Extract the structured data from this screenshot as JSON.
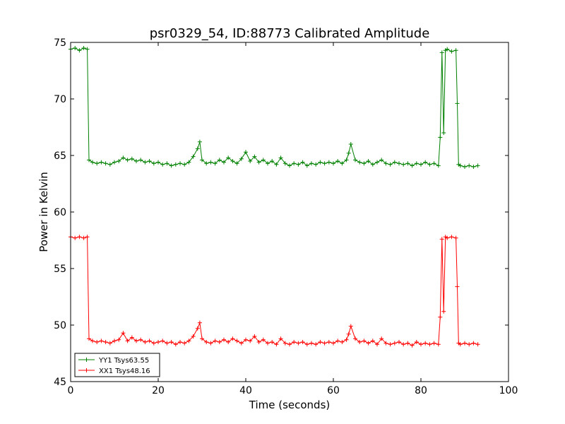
{
  "chart_data": {
    "type": "line",
    "title": "psr0329_54, ID:88773 Calibrated Amplitude",
    "xlabel": "Time (seconds)",
    "ylabel": "Power in Kelvin",
    "xlim": [
      0,
      100
    ],
    "ylim": [
      45,
      75
    ],
    "xticks": [
      0,
      20,
      40,
      60,
      80,
      100
    ],
    "yticks": [
      45,
      50,
      55,
      60,
      65,
      70,
      75
    ],
    "grid": false,
    "legend_position": "lower-left",
    "marker": "plus",
    "series": [
      {
        "name": "YY1 Tsys63.55",
        "color": "#008000",
        "points": [
          [
            0,
            74.4
          ],
          [
            1,
            74.5
          ],
          [
            2,
            74.3
          ],
          [
            3,
            74.5
          ],
          [
            3.8,
            74.4
          ],
          [
            4.2,
            64.6
          ],
          [
            5,
            64.4
          ],
          [
            6,
            64.3
          ],
          [
            7,
            64.4
          ],
          [
            8,
            64.3
          ],
          [
            9,
            64.2
          ],
          [
            10,
            64.4
          ],
          [
            11,
            64.5
          ],
          [
            12,
            64.8
          ],
          [
            13,
            64.6
          ],
          [
            14,
            64.7
          ],
          [
            15,
            64.5
          ],
          [
            16,
            64.6
          ],
          [
            17,
            64.4
          ],
          [
            18,
            64.5
          ],
          [
            19,
            64.3
          ],
          [
            20,
            64.4
          ],
          [
            21,
            64.2
          ],
          [
            22,
            64.3
          ],
          [
            23,
            64.1
          ],
          [
            24,
            64.2
          ],
          [
            25,
            64.3
          ],
          [
            26,
            64.2
          ],
          [
            27,
            64.4
          ],
          [
            28,
            64.9
          ],
          [
            29,
            65.6
          ],
          [
            29.5,
            66.2
          ],
          [
            30,
            64.6
          ],
          [
            31,
            64.3
          ],
          [
            32,
            64.4
          ],
          [
            33,
            64.3
          ],
          [
            34,
            64.6
          ],
          [
            35,
            64.4
          ],
          [
            36,
            64.8
          ],
          [
            37,
            64.5
          ],
          [
            38,
            64.3
          ],
          [
            39,
            64.7
          ],
          [
            40,
            65.3
          ],
          [
            41,
            64.5
          ],
          [
            42,
            64.9
          ],
          [
            43,
            64.4
          ],
          [
            44,
            64.6
          ],
          [
            45,
            64.3
          ],
          [
            46,
            64.5
          ],
          [
            47,
            64.2
          ],
          [
            48,
            64.8
          ],
          [
            49,
            64.3
          ],
          [
            50,
            64.1
          ],
          [
            51,
            64.3
          ],
          [
            52,
            64.2
          ],
          [
            53,
            64.4
          ],
          [
            54,
            64.1
          ],
          [
            55,
            64.3
          ],
          [
            56,
            64.2
          ],
          [
            57,
            64.4
          ],
          [
            58,
            64.3
          ],
          [
            59,
            64.4
          ],
          [
            60,
            64.3
          ],
          [
            61,
            64.5
          ],
          [
            62,
            64.3
          ],
          [
            63,
            64.6
          ],
          [
            63.5,
            65.2
          ],
          [
            64,
            66.0
          ],
          [
            65,
            64.6
          ],
          [
            66,
            64.4
          ],
          [
            67,
            64.3
          ],
          [
            68,
            64.5
          ],
          [
            69,
            64.2
          ],
          [
            70,
            64.4
          ],
          [
            71,
            64.6
          ],
          [
            72,
            64.3
          ],
          [
            73,
            64.2
          ],
          [
            74,
            64.4
          ],
          [
            75,
            64.3
          ],
          [
            76,
            64.2
          ],
          [
            77,
            64.3
          ],
          [
            78,
            64.1
          ],
          [
            79,
            64.3
          ],
          [
            80,
            64.2
          ],
          [
            81,
            64.4
          ],
          [
            82,
            64.2
          ],
          [
            83,
            64.3
          ],
          [
            84,
            64.1
          ],
          [
            84.4,
            66.6
          ],
          [
            84.8,
            74.1
          ],
          [
            85.2,
            67.0
          ],
          [
            85.6,
            74.3
          ],
          [
            86,
            74.4
          ],
          [
            87,
            74.2
          ],
          [
            88,
            74.3
          ],
          [
            88.3,
            69.6
          ],
          [
            88.6,
            64.2
          ],
          [
            89,
            64.1
          ],
          [
            90,
            64.0
          ],
          [
            91,
            64.1
          ],
          [
            92,
            64.0
          ],
          [
            93,
            64.1
          ]
        ]
      },
      {
        "name": "XX1 Tsys48.16",
        "color": "#ff0000",
        "points": [
          [
            0,
            57.8
          ],
          [
            1,
            57.7
          ],
          [
            2,
            57.8
          ],
          [
            3,
            57.7
          ],
          [
            3.8,
            57.8
          ],
          [
            4.2,
            48.8
          ],
          [
            5,
            48.6
          ],
          [
            6,
            48.5
          ],
          [
            7,
            48.6
          ],
          [
            8,
            48.5
          ],
          [
            9,
            48.4
          ],
          [
            10,
            48.6
          ],
          [
            11,
            48.7
          ],
          [
            12,
            49.3
          ],
          [
            13,
            48.6
          ],
          [
            14,
            48.9
          ],
          [
            15,
            48.6
          ],
          [
            16,
            48.7
          ],
          [
            17,
            48.5
          ],
          [
            18,
            48.6
          ],
          [
            19,
            48.4
          ],
          [
            20,
            48.5
          ],
          [
            21,
            48.6
          ],
          [
            22,
            48.4
          ],
          [
            23,
            48.5
          ],
          [
            24,
            48.3
          ],
          [
            25,
            48.5
          ],
          [
            26,
            48.4
          ],
          [
            27,
            48.6
          ],
          [
            28,
            49.0
          ],
          [
            29,
            49.7
          ],
          [
            29.5,
            50.2
          ],
          [
            30,
            48.8
          ],
          [
            31,
            48.5
          ],
          [
            32,
            48.4
          ],
          [
            33,
            48.6
          ],
          [
            34,
            48.5
          ],
          [
            35,
            48.7
          ],
          [
            36,
            48.5
          ],
          [
            37,
            48.8
          ],
          [
            38,
            48.6
          ],
          [
            39,
            48.4
          ],
          [
            40,
            48.7
          ],
          [
            41,
            48.6
          ],
          [
            42,
            49.0
          ],
          [
            43,
            48.5
          ],
          [
            44,
            48.7
          ],
          [
            45,
            48.4
          ],
          [
            46,
            48.5
          ],
          [
            47,
            48.3
          ],
          [
            48,
            48.8
          ],
          [
            49,
            48.4
          ],
          [
            50,
            48.3
          ],
          [
            51,
            48.5
          ],
          [
            52,
            48.4
          ],
          [
            53,
            48.5
          ],
          [
            54,
            48.3
          ],
          [
            55,
            48.4
          ],
          [
            56,
            48.3
          ],
          [
            57,
            48.5
          ],
          [
            58,
            48.4
          ],
          [
            59,
            48.5
          ],
          [
            60,
            48.4
          ],
          [
            61,
            48.6
          ],
          [
            62,
            48.5
          ],
          [
            63,
            48.7
          ],
          [
            63.5,
            49.2
          ],
          [
            64,
            49.9
          ],
          [
            65,
            48.8
          ],
          [
            66,
            48.5
          ],
          [
            67,
            48.6
          ],
          [
            68,
            48.4
          ],
          [
            69,
            48.6
          ],
          [
            70,
            48.3
          ],
          [
            71,
            48.8
          ],
          [
            72,
            48.4
          ],
          [
            73,
            48.3
          ],
          [
            74,
            48.4
          ],
          [
            75,
            48.5
          ],
          [
            76,
            48.3
          ],
          [
            77,
            48.4
          ],
          [
            78,
            48.2
          ],
          [
            79,
            48.5
          ],
          [
            80,
            48.3
          ],
          [
            81,
            48.4
          ],
          [
            82,
            48.3
          ],
          [
            83,
            48.4
          ],
          [
            84,
            48.3
          ],
          [
            84.4,
            50.7
          ],
          [
            84.8,
            57.6
          ],
          [
            85.2,
            51.2
          ],
          [
            85.6,
            57.8
          ],
          [
            86,
            57.7
          ],
          [
            87,
            57.8
          ],
          [
            88,
            57.7
          ],
          [
            88.3,
            53.4
          ],
          [
            88.6,
            48.4
          ],
          [
            89,
            48.3
          ],
          [
            90,
            48.4
          ],
          [
            91,
            48.3
          ],
          [
            92,
            48.4
          ],
          [
            93,
            48.3
          ]
        ]
      }
    ]
  }
}
